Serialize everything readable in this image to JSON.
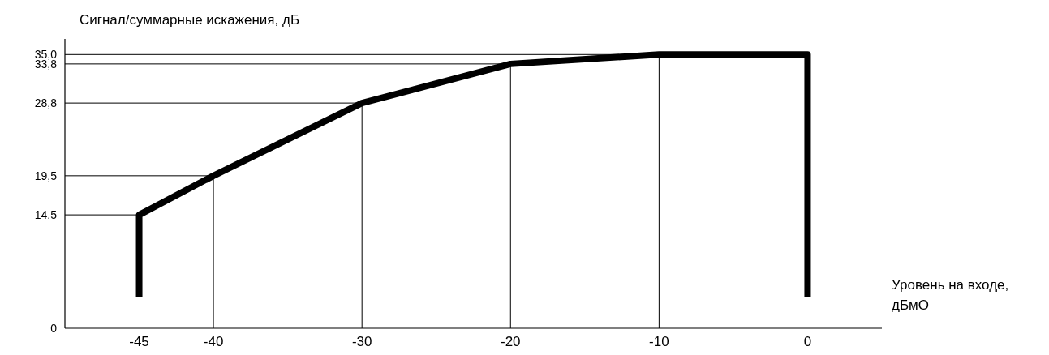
{
  "chart_data": {
    "type": "line",
    "ylabel": "Сигнал/суммарные искажения, дБ",
    "xlabel": "Уровень на входе, дБмО",
    "series": [
      {
        "color": "#000000",
        "x": [
          -45,
          -45,
          -40,
          -30,
          -20,
          -10,
          0,
          0
        ],
        "values": [
          4,
          14.5,
          19.5,
          28.8,
          33.8,
          35,
          35,
          4
        ]
      }
    ],
    "xlim": [
      -50,
      5
    ],
    "xticks": [
      -45,
      -40,
      -30,
      -20,
      -10,
      0
    ],
    "ylim": [
      0,
      37
    ],
    "yticks": [
      0,
      {
        "value": 14.5,
        "label": "14,5"
      },
      {
        "value": 19.5,
        "label": "19,5"
      },
      {
        "value": 28.8,
        "label": "28,8"
      },
      {
        "value": 33.8,
        "label": "33,8"
      },
      {
        "value": 35,
        "label": "35,0"
      }
    ],
    "ref_lines": [
      {
        "axis": "y",
        "value": 14.5
      },
      {
        "axis": "y",
        "value": 19.5
      },
      {
        "axis": "y",
        "value": 28.8
      },
      {
        "axis": "y",
        "value": 33.8
      },
      {
        "axis": "y",
        "value": 35
      },
      {
        "axis": "x",
        "value": -40
      },
      {
        "axis": "x",
        "value": -30
      },
      {
        "axis": "x",
        "value": -20
      },
      {
        "axis": "x",
        "value": -10
      }
    ],
    "grid": false,
    "marker": "none",
    "line_style": "solid"
  }
}
